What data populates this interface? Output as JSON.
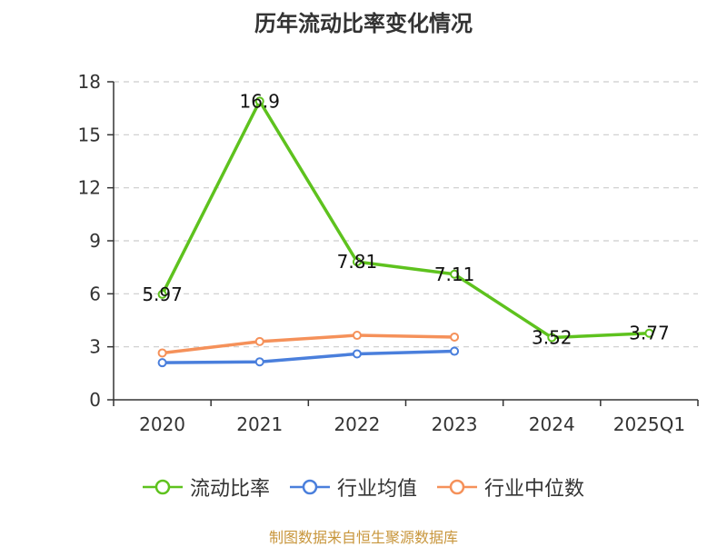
{
  "title": "历年流动比率变化情况",
  "footer": "制图数据来自恒生聚源数据库",
  "colors": {
    "current_ratio": "#5ec21e",
    "industry_avg": "#4a7fdc",
    "industry_median": "#f5915a",
    "footer": "#c8963c"
  },
  "chart_data": {
    "type": "line",
    "title": "历年流动比率变化情况",
    "categories": [
      "2020",
      "2021",
      "2022",
      "2023",
      "2024",
      "2025Q1"
    ],
    "y_ticks": [
      0,
      3,
      6,
      9,
      12,
      15,
      18
    ],
    "ylim": [
      0,
      18
    ],
    "grid": true,
    "legend_position": "bottom",
    "series": [
      {
        "name": "流动比率",
        "color": "#5ec21e",
        "values": [
          5.97,
          16.9,
          7.81,
          7.11,
          3.52,
          3.77
        ],
        "labels": [
          "5.97",
          "16.9",
          "7.81",
          "7.11",
          "3.52",
          "3.77"
        ]
      },
      {
        "name": "行业均值",
        "color": "#4a7fdc",
        "values": [
          2.1,
          2.15,
          2.6,
          2.75,
          null,
          null
        ]
      },
      {
        "name": "行业中位数",
        "color": "#f5915a",
        "values": [
          2.65,
          3.3,
          3.65,
          3.55,
          null,
          null
        ]
      }
    ]
  }
}
